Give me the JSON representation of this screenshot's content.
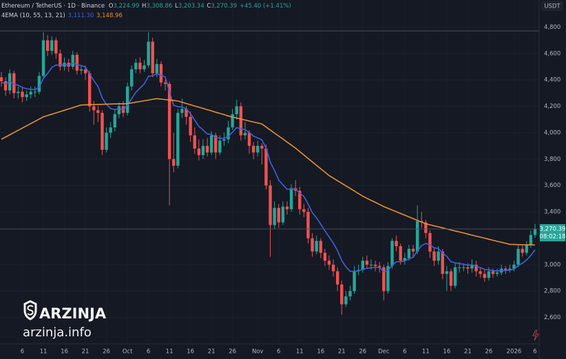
{
  "chart_data": {
    "type": "candlestick",
    "title": "Ethereum / TetherUS · 1D · Binance",
    "currency": "USDT",
    "ohlc_labels": {
      "open": "3,224.99",
      "high": "3,308.86",
      "low": "3,203.34",
      "close": "3,270.39"
    },
    "ohlc_keys": {
      "open": "O",
      "high": "H",
      "low": "L",
      "close": "C"
    },
    "change_label": "+45.40 (+1.41%)",
    "countdown": "08:02:18",
    "indicator": "4EMA (10, 55, 13, 21)",
    "up_color": "#26a69a",
    "down_color": "#ef5350",
    "grid": true,
    "ylim": [
      2400,
      5000
    ],
    "yticks": [
      {
        "value": 4800,
        "label": "4,800"
      },
      {
        "value": 4600,
        "label": "4,600"
      },
      {
        "value": 4400,
        "label": "4,400"
      },
      {
        "value": 4200,
        "label": "4,200"
      },
      {
        "value": 4000,
        "label": "4,000"
      },
      {
        "value": 3800,
        "label": "3,800"
      },
      {
        "value": 3600,
        "label": "3,600"
      },
      {
        "value": 3400,
        "label": "3,400"
      },
      {
        "value": 3000,
        "label": "3,000"
      },
      {
        "value": 2800,
        "label": "2,800"
      },
      {
        "value": 2600,
        "label": "2,600"
      }
    ],
    "categories": [
      null,
      null,
      null,
      null,
      null,
      "6",
      null,
      null,
      null,
      null,
      "11",
      null,
      null,
      null,
      null,
      "16",
      null,
      null,
      null,
      null,
      "21",
      null,
      null,
      null,
      null,
      "26",
      null,
      null,
      null,
      null,
      "Oct",
      null,
      null,
      null,
      null,
      "6",
      null,
      null,
      null,
      null,
      "11",
      null,
      null,
      null,
      null,
      "16",
      null,
      null,
      null,
      null,
      "21",
      null,
      null,
      null,
      null,
      "26",
      null,
      null,
      null,
      null,
      null,
      "Nov",
      null,
      null,
      null,
      null,
      "6",
      null,
      null,
      null,
      null,
      "11",
      null,
      null,
      null,
      null,
      "16",
      null,
      null,
      null,
      null,
      "21",
      null,
      null,
      null,
      null,
      "26",
      null,
      null,
      null,
      null,
      "Dec",
      null,
      null,
      null,
      null,
      "6",
      null,
      null,
      null,
      null,
      "11",
      null,
      null,
      null,
      null,
      "16",
      null,
      null,
      null,
      null,
      "21",
      null,
      null,
      null,
      null,
      "26",
      null,
      null,
      null,
      null,
      null,
      "2026",
      null,
      null,
      null,
      null,
      "6"
    ],
    "open": [
      4420,
      4390,
      4320,
      4450,
      4300,
      4310,
      4270,
      4290,
      4310,
      4310,
      4430,
      4700,
      4620,
      4700,
      4600,
      4500,
      4530,
      4500,
      4590,
      4470,
      4480,
      4450,
      4200,
      4170,
      4150,
      3870,
      4000,
      4040,
      4140,
      4200,
      4150,
      4350,
      4480,
      4530,
      4480,
      4510,
      4690,
      4450,
      4520,
      4380,
      4370,
      3800,
      3750,
      4150,
      4180,
      4120,
      3980,
      3880,
      3830,
      3900,
      3850,
      3980,
      3850,
      3940,
      3950,
      4040,
      4140,
      4200,
      3980,
      4000,
      3900,
      3850,
      3900,
      3880,
      3600,
      3300,
      3430,
      3320,
      3440,
      3420,
      3580,
      3560,
      3420,
      3400,
      3200,
      3100,
      3180,
      3090,
      3030,
      3000,
      2950,
      2850,
      2700,
      2760,
      2800,
      2950,
      2960,
      3030,
      3000,
      3000,
      2990,
      2980,
      2800,
      2990,
      3180,
      3140,
      3030,
      3050,
      3120,
      3100,
      3330,
      3320,
      3240,
      3100,
      3030,
      3100,
      2930,
      2950,
      2840,
      2980,
      2980,
      2980,
      2970,
      3000,
      2950,
      2930,
      2900,
      2950,
      2930,
      2940,
      2970,
      2960,
      2970,
      3000,
      3120,
      3090,
      3150,
      3224.99
    ],
    "high": [
      4460,
      4420,
      4480,
      4470,
      4350,
      4340,
      4320,
      4350,
      4350,
      4460,
      4760,
      4740,
      4730,
      4720,
      4630,
      4570,
      4560,
      4620,
      4610,
      4510,
      4510,
      4470,
      4240,
      4200,
      4170,
      4040,
      4080,
      4180,
      4230,
      4240,
      4380,
      4510,
      4560,
      4570,
      4550,
      4760,
      4720,
      4560,
      4540,
      4400,
      4390,
      4000,
      4180,
      4260,
      4200,
      4160,
      4040,
      3950,
      3950,
      3960,
      4010,
      4000,
      3980,
      4000,
      4090,
      4180,
      4250,
      4230,
      4080,
      4020,
      3930,
      3940,
      3920,
      3910,
      3640,
      3480,
      3460,
      3480,
      3480,
      3610,
      3640,
      3590,
      3460,
      3430,
      3240,
      3220,
      3200,
      3120,
      3070,
      3040,
      2980,
      2880,
      2800,
      2840,
      2990,
      3000,
      3060,
      3070,
      3040,
      3030,
      3020,
      3000,
      3020,
      3200,
      3220,
      3160,
      3090,
      3150,
      3150,
      3450,
      3400,
      3340,
      3260,
      3130,
      3140,
      3120,
      2990,
      2970,
      3010,
      3020,
      3010,
      3010,
      3040,
      3030,
      2980,
      2960,
      2980,
      2970,
      2970,
      3000,
      2990,
      3000,
      3030,
      3150,
      3150,
      3180,
      3260,
      3308.86
    ],
    "low": [
      4350,
      4280,
      4290,
      4260,
      4260,
      4230,
      4240,
      4260,
      4270,
      4290,
      4410,
      4580,
      4590,
      4560,
      4470,
      4470,
      4460,
      4480,
      4440,
      4440,
      4400,
      4160,
      4060,
      4080,
      3830,
      3850,
      3960,
      4010,
      4110,
      4120,
      4130,
      4320,
      4450,
      4450,
      4460,
      4490,
      4420,
      4420,
      4350,
      4320,
      3450,
      3700,
      3730,
      4110,
      4060,
      3930,
      3840,
      3790,
      3800,
      3820,
      3830,
      3800,
      3830,
      3900,
      3920,
      4020,
      4100,
      3940,
      3950,
      3840,
      3800,
      3820,
      3760,
      3570,
      3060,
      3270,
      3280,
      3300,
      3380,
      3400,
      3520,
      3380,
      3360,
      3160,
      3060,
      3080,
      3050,
      2990,
      2960,
      2910,
      2800,
      2620,
      2680,
      2730,
      2780,
      2920,
      2940,
      2970,
      2960,
      2950,
      2940,
      2730,
      2780,
      2970,
      3100,
      3000,
      3000,
      3030,
      3060,
      3080,
      3280,
      3200,
      3050,
      2990,
      3000,
      2890,
      2800,
      2800,
      2820,
      2940,
      2950,
      2930,
      2940,
      2910,
      2900,
      2870,
      2880,
      2900,
      2910,
      2920,
      2930,
      2940,
      2950,
      2980,
      3060,
      3070,
      3130,
      3203.34
    ],
    "close": [
      4390,
      4320,
      4450,
      4300,
      4310,
      4270,
      4290,
      4310,
      4310,
      4430,
      4700,
      4620,
      4700,
      4600,
      4500,
      4530,
      4500,
      4590,
      4470,
      4480,
      4450,
      4200,
      4170,
      4150,
      3870,
      4000,
      4040,
      4140,
      4200,
      4150,
      4350,
      4480,
      4530,
      4480,
      4510,
      4690,
      4450,
      4520,
      4380,
      4370,
      3800,
      3750,
      4150,
      4180,
      4120,
      3980,
      3880,
      3830,
      3900,
      3850,
      3980,
      3850,
      3940,
      3950,
      4040,
      4140,
      4200,
      3980,
      4000,
      3900,
      3850,
      3900,
      3880,
      3600,
      3300,
      3430,
      3320,
      3440,
      3420,
      3580,
      3560,
      3420,
      3400,
      3200,
      3100,
      3180,
      3090,
      3030,
      3000,
      2950,
      2850,
      2700,
      2760,
      2800,
      2950,
      2960,
      3030,
      3000,
      3000,
      2990,
      2980,
      2800,
      2990,
      3180,
      3140,
      3030,
      3050,
      3120,
      3100,
      3330,
      3320,
      3240,
      3100,
      3030,
      3100,
      2930,
      2950,
      2840,
      2980,
      2980,
      2980,
      2970,
      3000,
      2950,
      2930,
      2900,
      2950,
      2930,
      2940,
      2970,
      2960,
      2970,
      3000,
      3120,
      3090,
      3150,
      3224.99,
      3270.39
    ],
    "series": [
      {
        "color": "#3d63e0",
        "last_label": "3,111.30",
        "values": [
          4382,
          4371,
          4385,
          4370,
          4359,
          4343,
          4333,
          4329,
          4326,
          4345,
          4410,
          4448,
          4494,
          4513,
          4511,
          4514,
          4512,
          4526,
          4516,
          4509,
          4498,
          4444,
          4394,
          4350,
          4263,
          4215,
          4183,
          4175,
          4180,
          4175,
          4207,
          4257,
          4306,
          4338,
          4369,
          4427,
          4431,
          4447,
          4435,
          4423,
          4310,
          4208,
          4197,
          4194,
          4181,
          4144,
          4096,
          4048,
          4021,
          3990,
          3988,
          3963,
          3959,
          3957,
          3972,
          4003,
          4039,
          4028,
          4023,
          4001,
          3974,
          3960,
          3946,
          3883,
          3777,
          3714,
          3642,
          3605,
          3571,
          3573,
          3571,
          3543,
          3517,
          3459,
          3394,
          3355,
          3307,
          3257,
          3210,
          3163,
          3106,
          3032,
          2983,
          2950,
          2950,
          2952,
          2966,
          2972,
          2977,
          2979,
          2979,
          2947,
          2955,
          2996,
          3022,
          3023,
          3028,
          3045,
          3055,
          3105,
          3144,
          3161,
          3150,
          3128,
          3123,
          3088,
          3063,
          3022,
          3014,
          3008,
          3003,
          2997,
          2998,
          2989,
          2978,
          2964,
          2961,
          2955,
          2952,
          2955,
          2956,
          2959,
          2966,
          2994,
          3011,
          3036,
          3070,
          3111.3
        ]
      },
      {
        "color": "#e8922e",
        "last_label": "3,148.96",
        "values": [
          3950,
          3967,
          3984,
          4001,
          4018,
          4035,
          4052,
          4069,
          4086,
          4103,
          4120,
          4130,
          4140,
          4150,
          4160,
          4170,
          4180,
          4190,
          4200,
          4210,
          4211,
          4212,
          4213,
          4214,
          4215,
          4216,
          4217,
          4218,
          4219,
          4219,
          4220,
          4225,
          4231,
          4236,
          4242,
          4247,
          4253,
          4258,
          4254,
          4251,
          4247,
          4244,
          4240,
          4231,
          4221,
          4212,
          4202,
          4193,
          4184,
          4174,
          4165,
          4155,
          4146,
          4137,
          4127,
          4118,
          4111,
          4103,
          4096,
          4088,
          4081,
          4074,
          4066,
          4043,
          4020,
          3997,
          3974,
          3952,
          3929,
          3906,
          3883,
          3857,
          3831,
          3805,
          3779,
          3753,
          3727,
          3701,
          3675,
          3656,
          3636,
          3617,
          3597,
          3578,
          3558,
          3539,
          3519,
          3503,
          3487,
          3472,
          3456,
          3440,
          3427,
          3414,
          3401,
          3388,
          3375,
          3362,
          3349,
          3336,
          3323,
          3310,
          3302,
          3294,
          3287,
          3279,
          3271,
          3263,
          3255,
          3248,
          3240,
          3232,
          3224,
          3216,
          3209,
          3201,
          3193,
          3185,
          3177,
          3170,
          3162,
          3154,
          3153,
          3152,
          3151,
          3150,
          3150,
          3148.96
        ]
      }
    ]
  },
  "watermark": {
    "brand": "ARZINJA",
    "site": "arzinja.info"
  }
}
